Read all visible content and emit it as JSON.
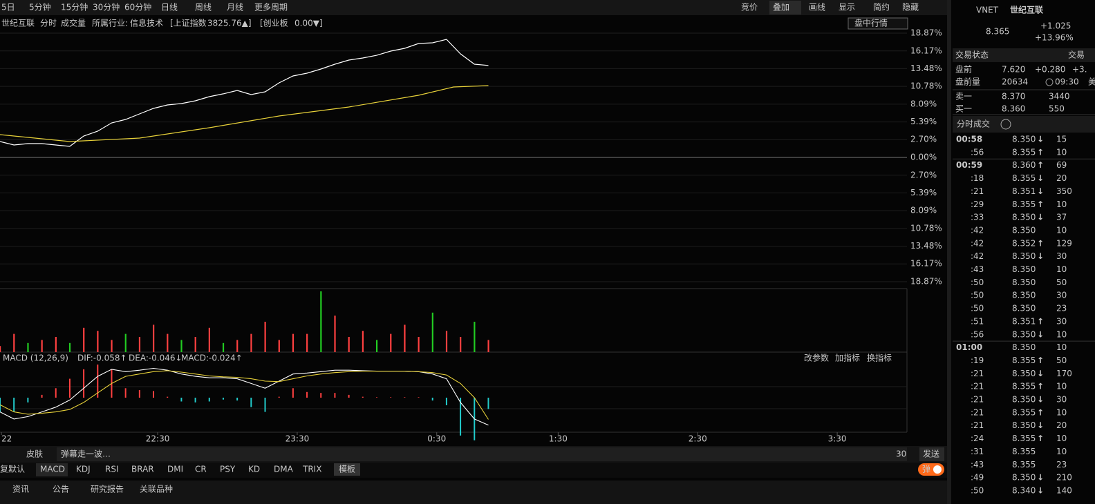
{
  "toolbar": {
    "periods": [
      "5日",
      "5分钟",
      "15分钟",
      "30分钟",
      "60分钟",
      "日线",
      "周线",
      "月线",
      "更多周期"
    ],
    "tools": [
      "竞价",
      "叠加",
      "画线",
      "显示",
      "简约",
      "隐藏"
    ],
    "active_tool": 1
  },
  "info_bar": {
    "stock": "世纪互联",
    "tabs": [
      "分时",
      "成交量"
    ],
    "industry_label": "所属行业:",
    "industry": "信息技术",
    "indices": [
      {
        "name": "[上证指数",
        "value": "3825.76▲]",
        "color": "#3399ff"
      },
      {
        "name": "[创业板",
        "value": "0.00▼]",
        "color": "#33cc33"
      }
    ],
    "mode_select": "盘中行情"
  },
  "chart_data": [
    {
      "type": "line",
      "xlim": [
        0,
        650
      ],
      "xticks": [
        {
          "value": 1,
          "label": "22"
        },
        {
          "value": 113,
          "label": "22:30"
        },
        {
          "value": 213,
          "label": "23:30"
        },
        {
          "value": 313,
          "label": "0:30"
        },
        {
          "value": 400,
          "label": "1:30"
        },
        {
          "value": 500,
          "label": "2:30"
        },
        {
          "value": 600,
          "label": "3:30"
        }
      ],
      "ylim": [
        -18.87,
        18.87
      ],
      "yticks": [
        {
          "value": 18.87,
          "label": "18.87%"
        },
        {
          "value": 16.17,
          "label": "16.17%"
        },
        {
          "value": 13.48,
          "label": "13.48%"
        },
        {
          "value": 10.78,
          "label": "10.78%"
        },
        {
          "value": 8.09,
          "label": "8.09%"
        },
        {
          "value": 5.39,
          "label": "5.39%"
        },
        {
          "value": 2.7,
          "label": "2.70%"
        },
        {
          "value": 0,
          "label": "0.00%"
        },
        {
          "value": -2.7,
          "label": "2.70%"
        },
        {
          "value": -5.39,
          "label": "5.39%"
        },
        {
          "value": -8.09,
          "label": "8.09%"
        },
        {
          "value": -10.78,
          "label": "10.78%"
        },
        {
          "value": -13.48,
          "label": "13.48%"
        },
        {
          "value": -16.17,
          "label": "16.17%"
        },
        {
          "value": -18.87,
          "label": "18.87%"
        }
      ],
      "series": [
        {
          "color": "#ffffff",
          "x": [
            0,
            10,
            20,
            30,
            40,
            50,
            60,
            70,
            80,
            90,
            100,
            110,
            120,
            130,
            140,
            150,
            160,
            170,
            180,
            190,
            200,
            210,
            220,
            230,
            240,
            250,
            260,
            270,
            280,
            290,
            300,
            310,
            320,
            330,
            340,
            350
          ],
          "values": [
            2.41,
            1.89,
            2.1,
            2.1,
            1.89,
            1.68,
            3.25,
            3.98,
            5.24,
            5.77,
            6.6,
            7.44,
            7.97,
            8.18,
            8.6,
            9.23,
            9.65,
            10.17,
            9.54,
            9.96,
            11.32,
            12.37,
            12.79,
            13.42,
            14.15,
            14.78,
            15.1,
            15.51,
            16.14,
            16.56,
            17.3,
            17.4,
            17.93,
            15.73,
            14.15,
            13.96
          ]
        },
        {
          "color": "#e8d23a",
          "x": [
            0,
            50,
            100,
            150,
            200,
            250,
            300,
            325,
            350
          ],
          "values": [
            3.46,
            2.41,
            2.94,
            4.51,
            6.29,
            7.65,
            9.44,
            10.69,
            10.9
          ]
        }
      ]
    },
    {
      "type": "bar",
      "xlim": [
        0,
        650
      ],
      "ylim": [
        0,
        100
      ],
      "x": [
        0,
        10,
        20,
        30,
        40,
        50,
        60,
        70,
        80,
        90,
        100,
        110,
        120,
        130,
        140,
        150,
        160,
        170,
        180,
        190,
        200,
        210,
        220,
        230,
        240,
        250,
        260,
        270,
        280,
        290,
        300,
        310,
        320,
        330,
        340,
        350
      ],
      "values": [
        10,
        30,
        15,
        20,
        25,
        15,
        40,
        35,
        20,
        30,
        25,
        45,
        30,
        20,
        25,
        40,
        15,
        20,
        30,
        50,
        20,
        30,
        30,
        100,
        60,
        25,
        35,
        20,
        30,
        45,
        25,
        65,
        35,
        25,
        50,
        20
      ],
      "colors": [
        "#ff4040",
        "#ff4040",
        "#22cc22",
        "#ff4040",
        "#ff4040",
        "#22cc22",
        "#ff4040",
        "#ff4040",
        "#ff4040",
        "#22cc22",
        "#ff4040",
        "#ff4040",
        "#ff4040",
        "#22cc22",
        "#ff4040",
        "#ff4040",
        "#22cc22",
        "#ff4040",
        "#ff4040",
        "#ff4040",
        "#ff4040",
        "#ff4040",
        "#ff4040",
        "#22cc22",
        "#ff4040",
        "#ff4040",
        "#ff4040",
        "#22cc22",
        "#ff4040",
        "#ff4040",
        "#ff4040",
        "#22cc22",
        "#ff4040",
        "#ff4040",
        "#22cc22",
        "#ff4040"
      ]
    },
    {
      "type": "macd",
      "title": "MACD (12,26,9)",
      "xlim": [
        0,
        650
      ],
      "ylim": [
        -0.07,
        0.07
      ],
      "actions": [
        "改参数",
        "加指标",
        "换指标"
      ],
      "x": [
        0,
        10,
        20,
        30,
        40,
        50,
        60,
        70,
        80,
        90,
        100,
        110,
        120,
        130,
        140,
        150,
        160,
        170,
        180,
        190,
        200,
        210,
        220,
        230,
        240,
        250,
        260,
        270,
        280,
        290,
        300,
        310,
        320,
        330,
        340,
        350
      ],
      "series": [
        {
          "legend_label": "DIF:-0.058↑",
          "color": "#ffffff",
          "values": [
            -0.03,
            -0.045,
            -0.04,
            -0.03,
            -0.02,
            -0.005,
            0.02,
            0.045,
            0.06,
            0.055,
            0.058,
            0.062,
            0.058,
            0.05,
            0.045,
            0.042,
            0.042,
            0.04,
            0.03,
            0.02,
            0.035,
            0.05,
            0.052,
            0.055,
            0.058,
            0.058,
            0.057,
            0.056,
            0.056,
            0.056,
            0.055,
            0.05,
            0.04,
            -0.01,
            -0.045,
            -0.058
          ]
        },
        {
          "legend_label": "DEA:-0.046↓",
          "color": "#e8d23a",
          "values": [
            -0.015,
            -0.03,
            -0.035,
            -0.033,
            -0.03,
            -0.025,
            -0.01,
            0.01,
            0.03,
            0.045,
            0.05,
            0.055,
            0.057,
            0.054,
            0.05,
            0.046,
            0.044,
            0.043,
            0.04,
            0.035,
            0.034,
            0.04,
            0.046,
            0.05,
            0.053,
            0.055,
            0.056,
            0.056,
            0.056,
            0.056,
            0.055,
            0.053,
            0.048,
            0.03,
            0.0,
            -0.046
          ]
        }
      ],
      "histogram": {
        "legend_label": "MACD:-0.024↑",
        "legend_color": "#33cc33",
        "up_color": "#ff4040",
        "down_color": "#22cccc",
        "values": [
          -0.03,
          -0.03,
          -0.01,
          0.006,
          0.02,
          0.04,
          0.06,
          0.07,
          0.06,
          0.02,
          0.016,
          0.014,
          0.002,
          -0.008,
          -0.01,
          -0.008,
          -0.004,
          -0.006,
          -0.02,
          -0.03,
          0.002,
          0.02,
          0.012,
          0.01,
          0.01,
          0.006,
          0.002,
          0.001,
          0.001,
          0.001,
          0.001,
          -0.006,
          -0.016,
          -0.08,
          -0.09,
          -0.024
        ]
      }
    }
  ],
  "bottom_bar": {
    "skin": "皮肤",
    "danmaku_placeholder": "弹幕走一波…",
    "char_count": "30",
    "send": "发送",
    "indicator_tabs": [
      "复默认",
      "MACD",
      "KDJ",
      "RSI",
      "BRAR",
      "DMI",
      "CR",
      "PSY",
      "KD",
      "DMA",
      "TRIX"
    ],
    "active_indicator": 1,
    "template": "模板",
    "danmaku_toggle": "弹",
    "tabs": [
      "资讯",
      "公告",
      "研究报告",
      "关联品种"
    ]
  },
  "quote": {
    "code": "VNET",
    "name": "世纪互联",
    "price": "8.365",
    "change": "+1.025",
    "change_pct": "+13.96%",
    "status_label": "交易状态",
    "status": "交易",
    "premarket": [
      {
        "label": "盘前",
        "a": "7.620",
        "b": "+0.280",
        "c": "+3."
      },
      {
        "label": "盘前量",
        "a": "20634",
        "b": "09:30",
        "c": "美"
      }
    ],
    "book": [
      {
        "label": "卖一",
        "price": "8.370",
        "volume": "3440"
      },
      {
        "label": "买一",
        "price": "8.360",
        "volume": "550"
      }
    ],
    "trades_title": "分时成交",
    "trades": [
      {
        "time": "00:58",
        "price": "8.350",
        "dir": "↓",
        "vol": "15"
      },
      {
        "time": ":56",
        "price": "8.355",
        "dir": "↑",
        "vol": "10"
      },
      {
        "time": "00:59",
        "price": "8.360",
        "dir": "↑",
        "vol": "69"
      },
      {
        "time": ":18",
        "price": "8.355",
        "dir": "↓",
        "vol": "20"
      },
      {
        "time": ":21",
        "price": "8.351",
        "dir": "↓",
        "vol": "350"
      },
      {
        "time": ":29",
        "price": "8.355",
        "dir": "↑",
        "vol": "10"
      },
      {
        "time": ":33",
        "price": "8.350",
        "dir": "↓",
        "vol": "37"
      },
      {
        "time": ":42",
        "price": "8.350",
        "vol": "10"
      },
      {
        "time": ":42",
        "price": "8.352",
        "dir": "↑",
        "vol": "129"
      },
      {
        "time": ":42",
        "price": "8.350",
        "dir": "↓",
        "vol": "30"
      },
      {
        "time": ":43",
        "price": "8.350",
        "vol": "10"
      },
      {
        "time": ":50",
        "price": "8.350",
        "vol": "50"
      },
      {
        "time": ":50",
        "price": "8.350",
        "vol": "30"
      },
      {
        "time": ":50",
        "price": "8.350",
        "vol": "23"
      },
      {
        "time": ":51",
        "price": "8.351",
        "dir": "↑",
        "vol": "30"
      },
      {
        "time": ":56",
        "price": "8.350",
        "dir": "↓",
        "vol": "10"
      },
      {
        "time": "01:00",
        "price": "8.350",
        "vol": "10"
      },
      {
        "time": ":19",
        "price": "8.355",
        "dir": "↑",
        "vol": "50"
      },
      {
        "time": ":21",
        "price": "8.350",
        "dir": "↓",
        "vol": "170"
      },
      {
        "time": ":21",
        "price": "8.355",
        "dir": "↑",
        "vol": "10"
      },
      {
        "time": ":21",
        "price": "8.350",
        "dir": "↓",
        "vol": "30"
      },
      {
        "time": ":21",
        "price": "8.355",
        "dir": "↑",
        "vol": "10"
      },
      {
        "time": ":21",
        "price": "8.350",
        "dir": "↓",
        "vol": "20"
      },
      {
        "time": ":24",
        "price": "8.355",
        "dir": "↑",
        "vol": "10"
      },
      {
        "time": ":31",
        "price": "8.355",
        "vol": "10"
      },
      {
        "time": ":43",
        "price": "8.355",
        "vol": "23"
      },
      {
        "time": ":49",
        "price": "8.350",
        "dir": "↓",
        "vol": "210"
      },
      {
        "time": ":50",
        "price": "8.340",
        "dir": "↓",
        "vol": "140"
      }
    ]
  }
}
